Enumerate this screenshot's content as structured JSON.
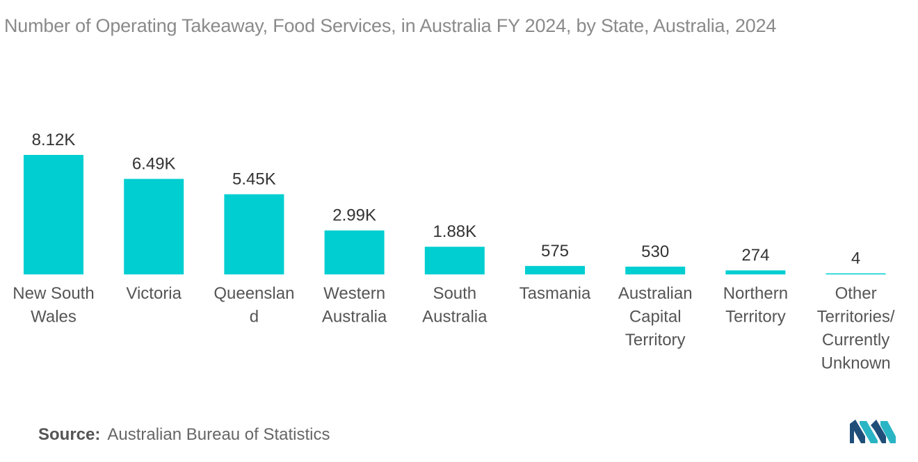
{
  "title": "Number of Operating Takeaway, Food Services, in Australia FY 2024, by State, Australia, 2024",
  "source": {
    "label": "Source:",
    "value": "Australian Bureau of Statistics"
  },
  "logo": {
    "icon": "mordor-intelligence-logo-icon"
  },
  "colors": {
    "bar": "#00CED1",
    "title": "#8a8a8a",
    "text": "#555555",
    "logo_dark": "#1f4e79",
    "logo_light": "#2ab5c4"
  },
  "chart_data": {
    "type": "bar",
    "categories": [
      [
        "New South",
        "Wales"
      ],
      [
        "Victoria"
      ],
      [
        "Queenslan",
        "d"
      ],
      [
        "Western",
        "Australia"
      ],
      [
        "South",
        "Australia"
      ],
      [
        "Tasmania"
      ],
      [
        "Australian",
        "Capital",
        "Territory"
      ],
      [
        "Northern",
        "Territory"
      ],
      [
        "Other",
        "Territories/",
        "Currently",
        "Unknown"
      ]
    ],
    "values": [
      8120,
      6490,
      5450,
      2990,
      1880,
      575,
      530,
      274,
      4
    ],
    "data_labels": [
      "8.12K",
      "6.49K",
      "5.45K",
      "2.99K",
      "1.88K",
      "575",
      "530",
      "274",
      "4"
    ],
    "xlabel": "",
    "ylabel": "",
    "ylim": [
      0,
      8120
    ],
    "grid": false,
    "legend": "none"
  }
}
